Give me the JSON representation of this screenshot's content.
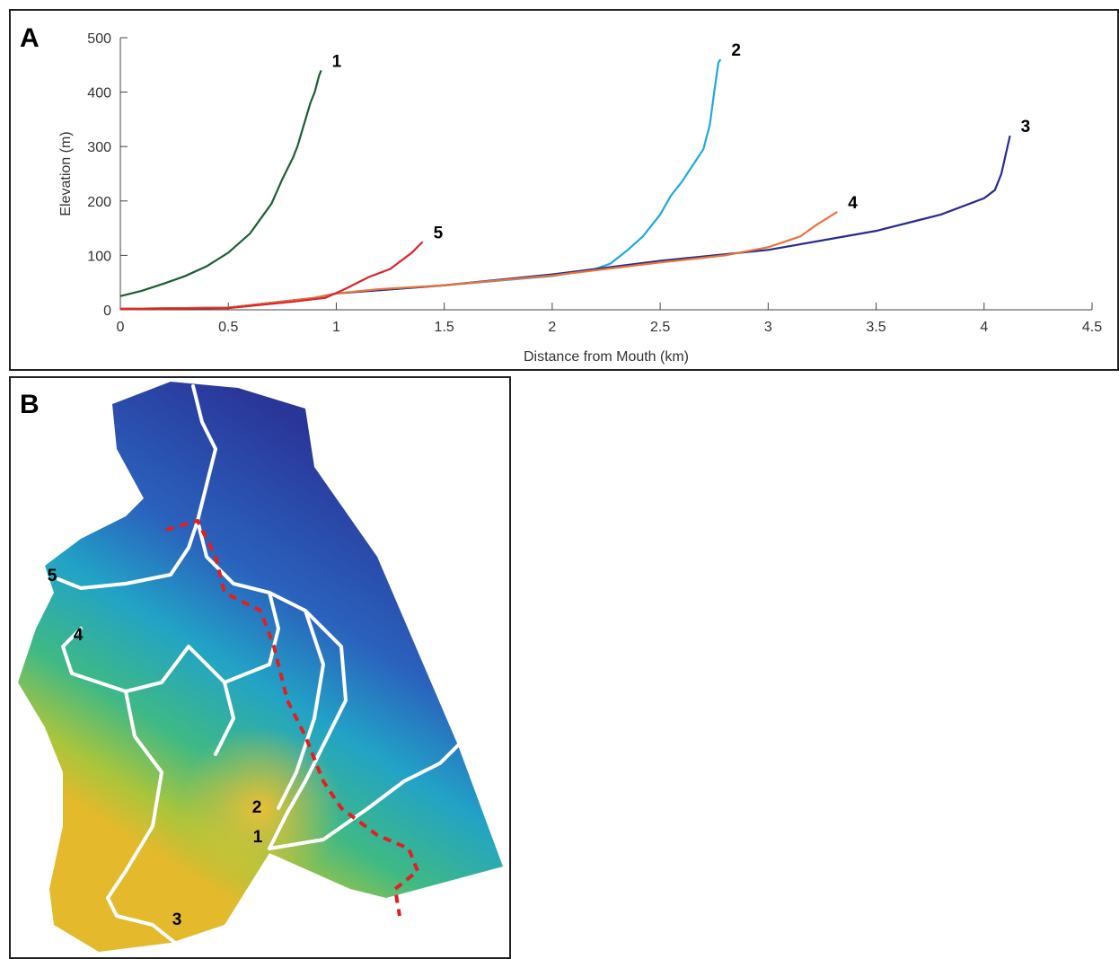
{
  "panels": {
    "a": "A",
    "b": "B"
  },
  "chart_data": {
    "type": "line",
    "xlabel": "Distance from Mouth (km)",
    "ylabel": "Elevation (m)",
    "xlim": [
      0,
      4.5
    ],
    "xticks": [
      0,
      0.5,
      1,
      1.5,
      2,
      2.5,
      3,
      3.5,
      4,
      4.5
    ],
    "ylim": [
      0,
      500
    ],
    "yticks": [
      0,
      100,
      200,
      300,
      400,
      500
    ],
    "series": [
      {
        "name": "1",
        "color": "#1b5e32",
        "x": [
          0,
          0.1,
          0.2,
          0.3,
          0.4,
          0.5,
          0.6,
          0.7,
          0.75,
          0.8,
          0.82,
          0.85,
          0.88,
          0.9,
          0.92,
          0.93
        ],
        "values": [
          25,
          35,
          48,
          62,
          80,
          105,
          140,
          195,
          240,
          280,
          300,
          340,
          380,
          400,
          430,
          440
        ]
      },
      {
        "name": "2",
        "color": "#1ea9de",
        "x": [
          0,
          0.5,
          0.9,
          1.0,
          1.5,
          2.0,
          2.2,
          2.27,
          2.35,
          2.42,
          2.5,
          2.55,
          2.6,
          2.65,
          2.7,
          2.73,
          2.75,
          2.77,
          2.78
        ],
        "values": [
          2,
          4,
          22,
          30,
          45,
          62,
          75,
          85,
          110,
          135,
          175,
          210,
          235,
          265,
          295,
          340,
          400,
          455,
          460
        ]
      },
      {
        "name": "3",
        "color": "#262b8e",
        "x": [
          0,
          0.5,
          0.9,
          1.0,
          1.5,
          2.0,
          2.5,
          3.0,
          3.5,
          3.8,
          4.0,
          4.05,
          4.08,
          4.1,
          4.12
        ],
        "values": [
          2,
          4,
          22,
          30,
          45,
          65,
          90,
          110,
          145,
          175,
          205,
          220,
          250,
          285,
          320
        ]
      },
      {
        "name": "4",
        "color": "#e8743b",
        "x": [
          0,
          0.5,
          0.9,
          1.0,
          1.2,
          1.5,
          2.0,
          2.5,
          2.8,
          3.0,
          3.15,
          3.22,
          3.3,
          3.32
        ],
        "values": [
          2,
          4,
          22,
          30,
          38,
          45,
          63,
          87,
          100,
          115,
          135,
          155,
          175,
          180
        ]
      },
      {
        "name": "5",
        "color": "#d7262b",
        "x": [
          0,
          0.5,
          0.8,
          0.95,
          1.05,
          1.15,
          1.25,
          1.35,
          1.4
        ],
        "values": [
          1,
          3,
          15,
          22,
          40,
          60,
          75,
          105,
          125
        ]
      }
    ]
  },
  "map": {
    "labels": [
      "1",
      "2",
      "3",
      "4",
      "5"
    ]
  }
}
